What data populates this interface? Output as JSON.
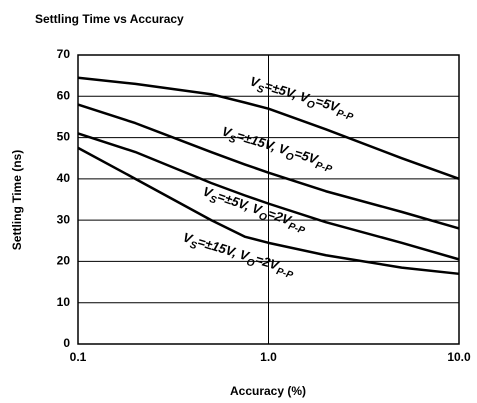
{
  "chart_data": {
    "type": "line",
    "title": "Settling Time vs Accuracy",
    "xlabel": "Accuracy (%)",
    "ylabel": "Settling Time (ns)",
    "xscale": "log",
    "x": [
      0.1,
      0.2,
      0.5,
      0.75,
      1,
      2,
      5,
      10
    ],
    "xlim": [
      0.1,
      10
    ],
    "xticks": [
      {
        "value": 0.1,
        "label": "0.1"
      },
      {
        "value": 1,
        "label": "1.0"
      },
      {
        "value": 10,
        "label": "10.0"
      }
    ],
    "ylim": [
      0,
      70
    ],
    "yticks": [
      0,
      10,
      20,
      30,
      40,
      50,
      60,
      70
    ],
    "grid": true,
    "color": "#000000",
    "series": [
      {
        "label": [
          "V",
          "S",
          "=±5V, V",
          "O",
          "=5V",
          "P-P"
        ],
        "values": [
          64.5,
          63,
          60.5,
          58.5,
          57,
          52,
          45,
          40
        ]
      },
      {
        "label": [
          "V",
          "S",
          "=±15V, V",
          "O",
          "=5V",
          "P-P"
        ],
        "values": [
          58,
          53.5,
          46.5,
          43.5,
          41.5,
          37,
          32,
          28
        ]
      },
      {
        "label": [
          "V",
          "S",
          "=±5V, V",
          "O",
          "=2V",
          "P-P"
        ],
        "values": [
          51,
          46.5,
          39,
          36,
          34,
          29.5,
          24.5,
          20.5
        ]
      },
      {
        "label": [
          "V",
          "S",
          "=±15V, V",
          "O",
          "=2V",
          "P-P"
        ],
        "values": [
          47.5,
          40,
          30,
          26,
          24.5,
          21.5,
          18.5,
          17
        ]
      }
    ]
  }
}
